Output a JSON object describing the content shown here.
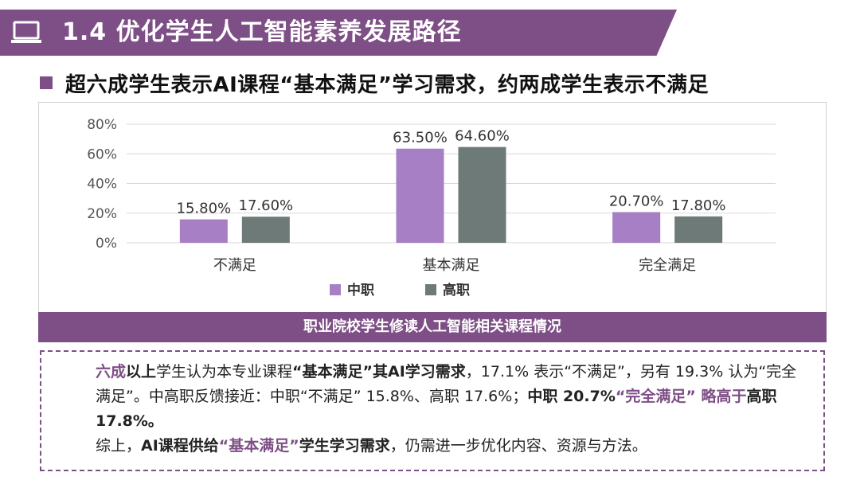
{
  "header": {
    "title": "1.4 优化学生人工智能素养发展路径",
    "icon": "computer-icon"
  },
  "subtitle": "超六成学生表示AI课程“基本满足”学习需求，约两成学生表示不满足",
  "chart_caption": "职业院校学生修读人工智能相关课程情况",
  "chart_data": {
    "type": "bar",
    "categories": [
      "不满足",
      "基本满足",
      "完全满足"
    ],
    "series": [
      {
        "name": "中职",
        "values": [
          15.8,
          63.5,
          20.7
        ],
        "labels": [
          "15.80%",
          "63.50%",
          "20.70%"
        ],
        "color": "#a77fc4"
      },
      {
        "name": "高职",
        "values": [
          17.6,
          64.6,
          17.8
        ],
        "labels": [
          "17.60%",
          "64.60%",
          "17.80%"
        ],
        "color": "#6e7a78"
      }
    ],
    "y_ticks": [
      "0%",
      "20%",
      "40%",
      "60%",
      "80%"
    ],
    "ylim": [
      0,
      80
    ],
    "grid": true,
    "legend": "bottom"
  },
  "paragraph": {
    "p1_a": "六成",
    "p1_b": "以上",
    "p1_c": "学生认为本专业课程",
    "p1_d": "“基本满足”其AI学习需求",
    "p1_e": "，17.1% 表示“不满足”，另有 19.3% 认为“完全满足”。中高职反馈接近：中职“不满足” 15.8%、高职 17.6%；",
    "p1_f": "中职 20.7%",
    "p1_g": "“完全满足”",
    "p1_h": " 略高于",
    "p1_i": "高职17.8%。",
    "p2_a": "综上，",
    "p2_b": "AI课程供给",
    "p2_c": "“基本满足”",
    "p2_d": "学生学习需求",
    "p2_e": "，仍需进一步优化内容、资源与方法。"
  }
}
